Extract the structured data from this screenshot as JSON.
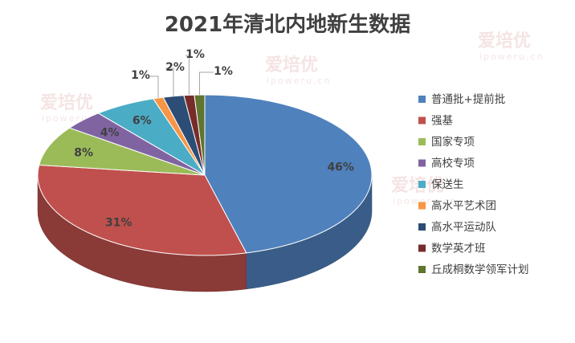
{
  "watermark": {
    "brand": "爱培优",
    "url": "ipoweru.cn"
  },
  "chart_data": {
    "type": "pie",
    "title": "2021年清北内地新生数据",
    "legend_position": "right",
    "categories": [
      "普通批+提前批",
      "强基",
      "国家专项",
      "高校专项",
      "保送生",
      "高水平艺术团",
      "高水平运动队",
      "数学英才班",
      "丘成桐数学领军计划"
    ],
    "values": [
      46,
      31,
      8,
      4,
      6,
      1,
      2,
      1,
      1
    ],
    "labels": [
      "46%",
      "31%",
      "8%",
      "4%",
      "6%",
      "1%",
      "2%",
      "1%",
      "1%"
    ],
    "colors": [
      "#4f81bd",
      "#c0504d",
      "#9bbb59",
      "#8064a2",
      "#4bacc6",
      "#f79646",
      "#2c4d75",
      "#772c2a",
      "#5f7530"
    ]
  }
}
